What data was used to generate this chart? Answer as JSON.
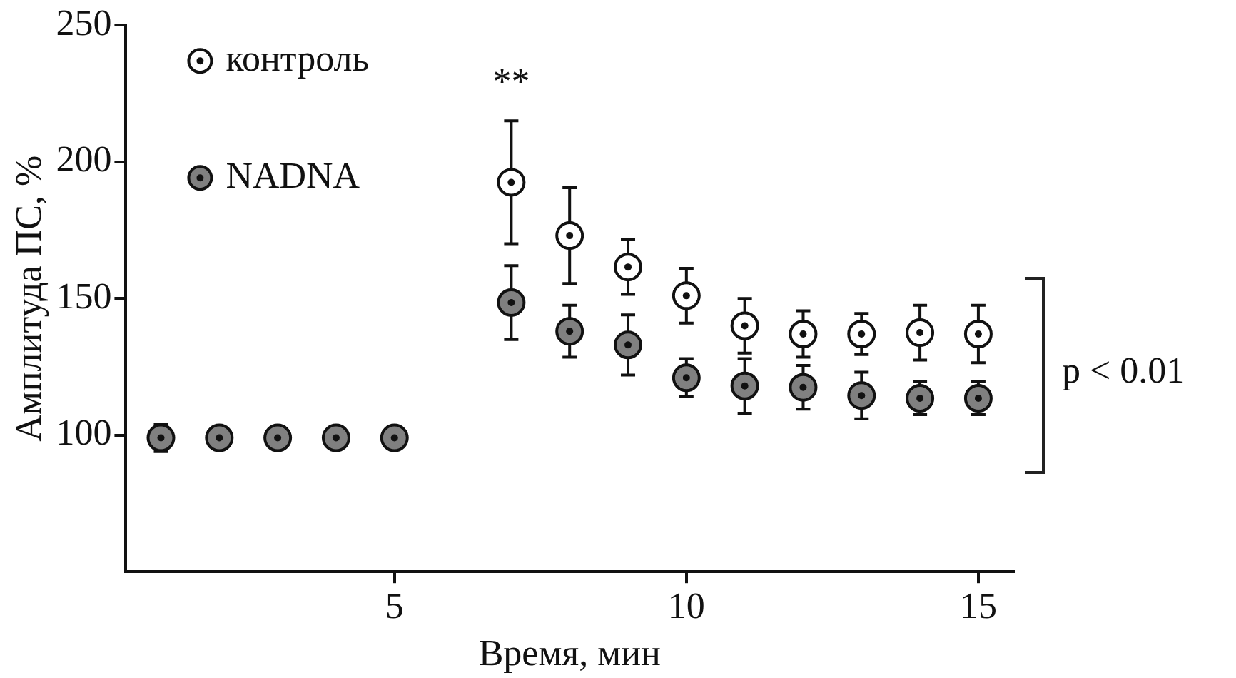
{
  "chart_data": {
    "type": "scatter",
    "xlabel": "Время, мин",
    "ylabel": "Амплитуда ПС, %",
    "x": [
      1,
      2,
      3,
      4,
      5,
      6,
      7,
      8,
      9,
      10,
      11,
      12,
      13,
      14,
      15
    ],
    "series": [
      {
        "name": "контроль",
        "color": "#ffffff",
        "values": [
          null,
          null,
          null,
          null,
          null,
          null,
          192.5,
          173,
          161.5,
          151,
          140,
          137,
          137,
          137.5,
          137
        ],
        "errors": [
          null,
          null,
          null,
          null,
          null,
          null,
          22.5,
          17.5,
          10,
          10,
          10,
          8.5,
          7.5,
          10,
          10.5
        ]
      },
      {
        "name": "NADNA",
        "color": "#808080",
        "values": [
          99,
          99,
          99,
          99,
          99,
          null,
          148.5,
          138,
          133,
          121,
          118,
          117.5,
          114.5,
          113.5,
          113.5
        ],
        "errors": [
          5,
          null,
          null,
          null,
          null,
          null,
          13.5,
          9.5,
          11,
          7,
          10,
          8,
          8.5,
          6,
          6
        ]
      }
    ],
    "xlim": [
      0.4,
      15.6
    ],
    "xticks": [
      5,
      10,
      15
    ],
    "ylim": [
      50,
      250
    ],
    "yticks": [
      100,
      150,
      200,
      250
    ],
    "annotations": [
      "**",
      "p < 0.01"
    ],
    "legend": "top left",
    "marker": "circle"
  }
}
